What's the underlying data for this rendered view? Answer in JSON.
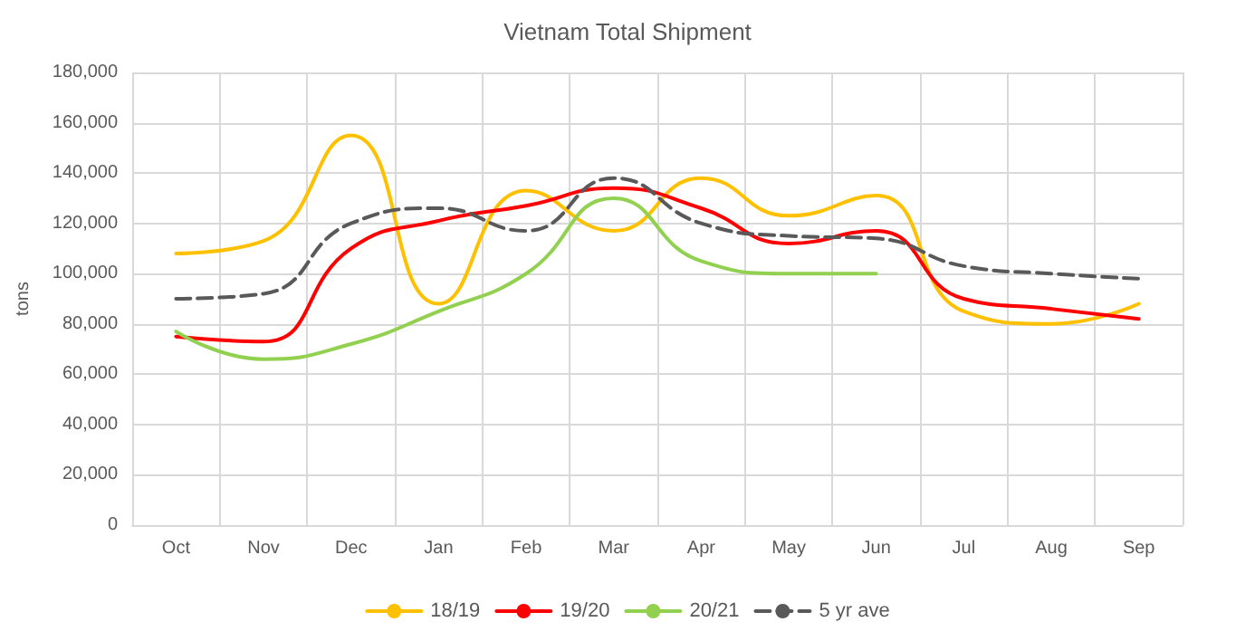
{
  "chart_data": {
    "type": "line",
    "title": "Vietnam Total Shipment",
    "ylabel": "tons",
    "categories": [
      "Oct",
      "Nov",
      "Dec",
      "Jan",
      "Feb",
      "Mar",
      "Apr",
      "May",
      "Jun",
      "Jul",
      "Aug",
      "Sep"
    ],
    "series": [
      {
        "name": "18/19",
        "color": "#ffc000",
        "values": [
          108000,
          113000,
          155000,
          88000,
          133000,
          117000,
          138000,
          123000,
          131000,
          85000,
          80000,
          88000
        ]
      },
      {
        "name": "19/20",
        "color": "#ff0000",
        "values": [
          75000,
          73000,
          110000,
          121000,
          127000,
          134000,
          126000,
          112000,
          117000,
          90000,
          86000,
          82000
        ]
      },
      {
        "name": "20/21",
        "color": "#92d050",
        "values": [
          77000,
          66000,
          72000,
          85000,
          100000,
          130000,
          105000,
          100000,
          100000,
          null,
          null,
          null
        ]
      },
      {
        "name": "5 yr ave",
        "color": "#595959",
        "line_style": "dashed",
        "values": [
          90000,
          92000,
          120000,
          126000,
          117000,
          138000,
          120000,
          115000,
          114000,
          103000,
          100000,
          98000
        ]
      }
    ],
    "ylim": [
      0,
      180000
    ],
    "yticks": [
      0,
      {
        "value": 20000,
        "label": "20,000"
      },
      {
        "value": 40000,
        "label": "40,000"
      },
      {
        "value": 60000,
        "label": "60,000"
      },
      {
        "value": 80000,
        "label": "80,000"
      },
      {
        "value": 100000,
        "label": "100,000"
      },
      {
        "value": 120000,
        "label": "120,000"
      },
      {
        "value": 140000,
        "label": "140,000"
      },
      {
        "value": 160000,
        "label": "160,000"
      },
      {
        "value": 180000,
        "label": "180,000"
      }
    ],
    "grid": true,
    "legend": "bottom",
    "marker": "none"
  }
}
